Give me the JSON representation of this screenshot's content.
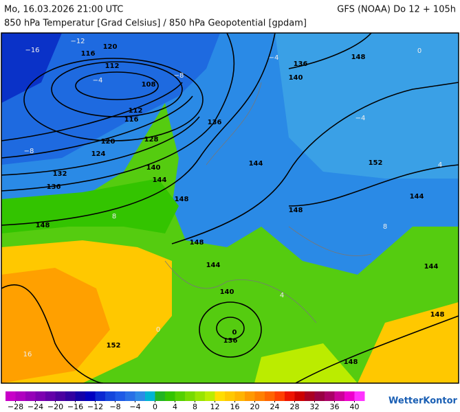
{
  "header": {
    "datetime": "Mo, 16.03.2026 21:00 UTC",
    "model": "GFS (NOAA) Do 12 + 105h",
    "subtitle": "850 hPa Temperatur [Grad Celsius] / 850 hPa Geopotential [gpdam]"
  },
  "map": {
    "geopotential_labels": [
      "116",
      "120",
      "112",
      "108",
      "112",
      "116",
      "120",
      "128",
      "124",
      "140",
      "132",
      "144",
      "136",
      "148",
      "148",
      "136",
      "144",
      "136",
      "140",
      "148",
      "152",
      "148",
      "148",
      "144",
      "140",
      "0",
      "136",
      "152",
      "148",
      "148",
      "144",
      "144"
    ],
    "temperature_labels": [
      "−16",
      "−12",
      "−8",
      "−4",
      "−4",
      "0",
      "−4",
      "8",
      "16",
      "4",
      "−8",
      "0",
      "4",
      "8"
    ]
  },
  "legend": {
    "range": [
      -30,
      42
    ],
    "ticks": [
      {
        "value": -28,
        "label": "−28"
      },
      {
        "value": -24,
        "label": "−24"
      },
      {
        "value": -20,
        "label": "−20"
      },
      {
        "value": -16,
        "label": "−16"
      },
      {
        "value": -12,
        "label": "−12"
      },
      {
        "value": -8,
        "label": "−8"
      },
      {
        "value": -4,
        "label": "−4"
      },
      0,
      4,
      8,
      12,
      16,
      20,
      24,
      28,
      32,
      36,
      40
    ],
    "colors": [
      "#c800c8",
      "#b000c0",
      "#9600b8",
      "#7d00b0",
      "#6400a8",
      "#4b00a0",
      "#3200a0",
      "#1400a8",
      "#0000c0",
      "#0a28d2",
      "#1446dc",
      "#1e5ae6",
      "#2870e6",
      "#2d8ae6",
      "#00b4d2",
      "#22b422",
      "#33c400",
      "#55d000",
      "#77da00",
      "#99e400",
      "#bbec00",
      "#ffdd00",
      "#ffc800",
      "#ffb400",
      "#ff9900",
      "#ff8000",
      "#ff6400",
      "#ff4000",
      "#ee1400",
      "#cc0000",
      "#aa0022",
      "#990044",
      "#aa0066",
      "#cc0099",
      "#ee00cc",
      "#ff33ff"
    ]
  },
  "logo": "WetterKontor"
}
